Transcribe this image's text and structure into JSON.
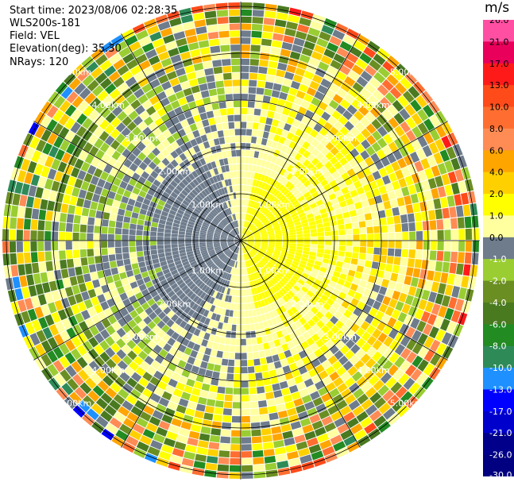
{
  "header": {
    "start_time": "Start time: 2023/08/06 02:28:35",
    "instrument": "WLS200s-181",
    "field": "Field: VEL",
    "elevation": "Elevation(deg): 35.30",
    "nrays": "NRays: 120"
  },
  "colorbar": {
    "unit": "m/s",
    "ticks": [
      "26.0",
      "21.0",
      "17.0",
      "13.0",
      "10.0",
      "8.0",
      "6.0",
      "4.0",
      "2.0",
      "1.0",
      "0.0",
      "-1.0",
      "-2.0",
      "-4.0",
      "-6.0",
      "-8.0",
      "-10.0",
      "-13.0",
      "-17.0",
      "-21.0",
      "-26.0",
      "-30.0"
    ],
    "colors": [
      "#ff4fa3",
      "#e8005a",
      "#ff1a1a",
      "#ff4a1a",
      "#ff6e30",
      "#ff8c55",
      "#ffa500",
      "#ffd000",
      "#ffff00",
      "#ffffa0",
      "#6e7c8c",
      "#9acd32",
      "#6b8e23",
      "#4a7a20",
      "#228b22",
      "#2e8b57",
      "#1e90ff",
      "#0000ff",
      "#0000cd",
      "#00008b",
      "#000080"
    ]
  },
  "chart_data": {
    "type": "heatmap",
    "field": "VEL",
    "nrays": 120,
    "elevation_deg": 35.3,
    "range_rings_km": [
      1.0,
      2.0,
      3.0,
      4.0,
      5.0
    ],
    "range_ring_labels": [
      "1.00km",
      "2.00km",
      "3.00km",
      "4.00km",
      "5.00km"
    ],
    "max_range_km": 5.1,
    "spokes_deg": [
      0,
      30,
      60,
      90,
      120,
      150
    ],
    "color_range": [
      -30.0,
      26.0
    ],
    "velocity_pattern": {
      "approaching_sector_center_deg": 90,
      "receding_sector_center_deg": 270,
      "near_field_peak_mps": 4.0,
      "far_field_spread_mps": [
        -30.0,
        26.0
      ]
    },
    "grid": true
  }
}
